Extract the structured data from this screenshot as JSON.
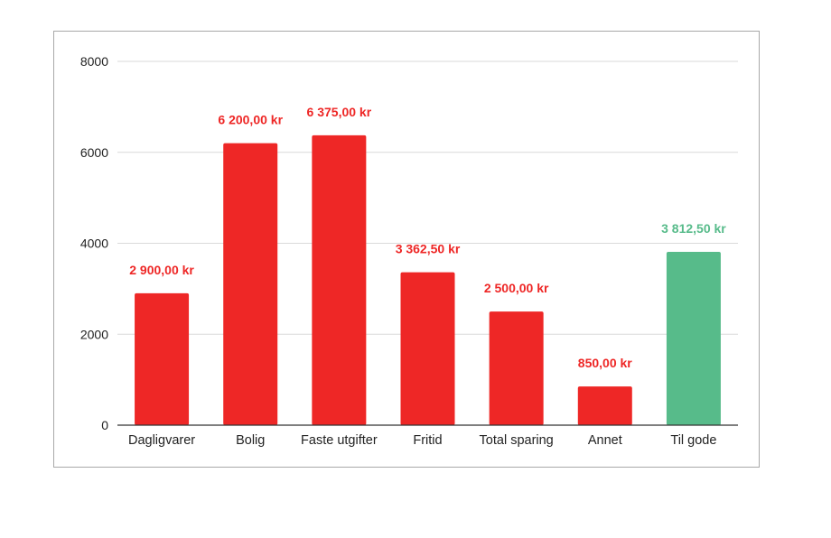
{
  "chart_data": {
    "type": "bar",
    "categories": [
      "Dagligvarer",
      "Bolig",
      "Faste utgifter",
      "Fritid",
      "Total sparing",
      "Annet",
      "Til gode"
    ],
    "values": [
      2900,
      6200,
      6375,
      3362.5,
      2500,
      850,
      3812.5
    ],
    "data_labels": [
      "2 900,00 kr",
      "6 200,00 kr",
      "6 375,00 kr",
      "3 362,50 kr",
      "2 500,00 kr",
      "850,00 kr",
      "3 812,50 kr"
    ],
    "bar_colors": [
      "#ee2726",
      "#ee2726",
      "#ee2726",
      "#ee2726",
      "#ee2726",
      "#ee2726",
      "#57bb8a"
    ],
    "label_colors": [
      "#ee2726",
      "#ee2726",
      "#ee2726",
      "#ee2726",
      "#ee2726",
      "#ee2726",
      "#57bb8a"
    ],
    "y_ticks": [
      0,
      2000,
      4000,
      6000,
      8000
    ],
    "ylim": [
      0,
      8000
    ],
    "title": "",
    "xlabel": "",
    "ylabel": "",
    "grid": true,
    "legend": "none"
  },
  "colors": {
    "negative": "#ee2726",
    "positive": "#57bb8a",
    "grid": "#d9d9d9",
    "axis": "#333333"
  }
}
